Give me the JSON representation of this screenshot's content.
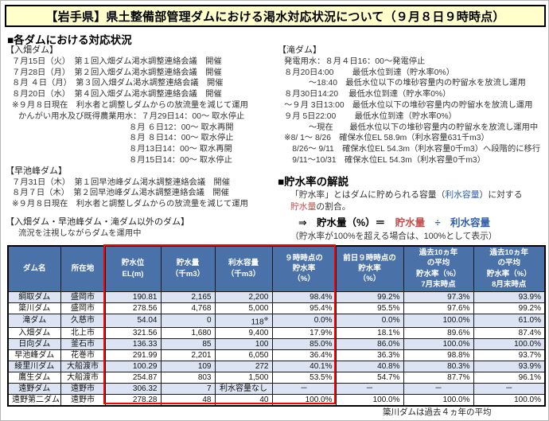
{
  "colors": {
    "title_bg": "#ffffcc",
    "header_blue": "#4a72a8",
    "row_alt": "#dce3f2",
    "box_red": "#ff0000",
    "text_red": "#c0504d",
    "text_blue": "#2e5fac"
  },
  "title": "【岩手県】県土整備部管理ダムにおける渇水対応状況について（９月８日９時時点）",
  "left": {
    "heading": "■各ダムにおける対応状況",
    "blocks": [
      {
        "header": "【入畑ダム】",
        "lines": [
          {
            "t": "７月15日（火）　第１回入畑ダム渇水調整連絡会議　開催",
            "ind": 0
          },
          {
            "t": "７月28日（月）　第２回入畑ダム渇水調整連絡会議　開催",
            "ind": 0
          },
          {
            "t": "８月 ４日（月）　第３回入畑ダム渇水調整連絡会議　開催",
            "ind": 0
          },
          {
            "t": "８月20日（水）　第４回入畑ダム渇水調整連絡会議　開催",
            "ind": 0
          },
          {
            "t": "※９月８日現在　利水者と調整しダムからの放流量を減じて運用",
            "ind": 0
          },
          {
            "t": "かんがい用水及び既得農業用水：７月29日14：00～ 取水停止",
            "ind": 1
          },
          {
            "t": "８月 ６日12：00～ 取水再開",
            "ind": 3
          },
          {
            "t": "８月 ８日14：00～ 取水停止",
            "ind": 3
          },
          {
            "t": "８月13日14：00～ 取水再開",
            "ind": 3
          },
          {
            "t": "８月15日14：00～ 取水停止",
            "ind": 3
          }
        ]
      },
      {
        "header": "【早池峰ダム】",
        "lines": [
          {
            "t": "７月31日（木）　第１回早池峰ダム渇水調整連絡会議　開催",
            "ind": 0
          },
          {
            "t": "８月７日（木）　第２回早池峰ダム渇水調整連絡会議　開催",
            "ind": 0
          },
          {
            "t": "※９月８日現在　利水者と調整しダムからの放流量を減じて運用",
            "ind": 0
          }
        ]
      },
      {
        "header": "【入畑ダム・早池峰ダム・滝ダム以外のダム】",
        "lines": [
          {
            "t": "流況を注視しながらダムを運用中",
            "ind": 1
          }
        ]
      }
    ]
  },
  "right": {
    "block": {
      "header": "【滝ダム】",
      "lines": [
        {
          "t": "発電用水：８月４日16：00～発電停止",
          "ind": 0
        },
        {
          "t": "８月20日4:00　 　最低水位到達（貯水率0%）",
          "ind": 0
        },
        {
          "t": "　　　～18:40　最低水位以下の堆砂容量内の貯留水を放流し運用",
          "ind": 0
        },
        {
          "t": "８月30日14:20　 最低水位到達（貯水率0%）",
          "ind": 0
        },
        {
          "t": "～９月 3日13:00　最低水位以下の堆砂容量内の貯留水を放流し運用",
          "ind": 0
        },
        {
          "t": "９月 5日22:00　 　最低水位到達（貯水率0%）",
          "ind": 0
        },
        {
          "t": "　　　～現在　　最低水位以下の堆砂容量内の貯留水を放流し運用中",
          "ind": 0
        },
        {
          "t": "※8/ 1～ 8/26　確保水位EL 58.9m（利水容量631千m3）",
          "ind": 0
        },
        {
          "t": "　8/26～ 9/11　確保水位EL 54.3m（利水容量0千m3）へ段階的に移行",
          "ind": 0
        },
        {
          "t": "　9/11～10/31　確保水位EL 54.3m（利水容量0千m3）",
          "ind": 0
        }
      ]
    },
    "explanation": {
      "heading": "■貯水率の解説",
      "lines": [
        {
          "ind": 1,
          "big": false,
          "segs": [
            {
              "t": "「貯水率」とはダムに貯められる容量（",
              "c": "k"
            },
            {
              "t": "利水容量",
              "c": "b"
            },
            {
              "t": "）に対する",
              "c": "k"
            }
          ]
        },
        {
          "ind": 1,
          "big": false,
          "segs": [
            {
              "t": "貯水量",
              "c": "r"
            },
            {
              "t": "の割合。",
              "c": "k"
            }
          ]
        },
        {
          "ind": 2,
          "big": true,
          "segs": [
            {
              "t": "⇒　貯水量（%）＝　",
              "c": "k"
            },
            {
              "t": "貯水量",
              "c": "r"
            },
            {
              "t": "　",
              "c": "k"
            },
            {
              "t": "÷",
              "c": "b"
            },
            {
              "t": "　",
              "c": "k"
            },
            {
              "t": "利水容量",
              "c": "b"
            }
          ]
        },
        {
          "ind": 1,
          "big": false,
          "segs": [
            {
              "t": "（貯水率が100%を超える場合は、100%として表示）",
              "c": "k"
            }
          ]
        }
      ]
    }
  },
  "table": {
    "headers": [
      "ダム名",
      "所在地",
      "貯水位\nEL(m)",
      "貯水量\n（千m3）",
      "利水容量\n（千m3）",
      "９時時点の\n貯水率\n（%）",
      "前日９時時点の\n貯水率\n（%）",
      "過去10ヵ年\nの平均\n貯水率（%）\n7月末時点",
      "過去10ヵ年\nの平均\n貯水率（%）\n8月末時点"
    ],
    "rows": [
      [
        "綱取ダム",
        "盛岡市",
        "190.81",
        "2,165",
        "2,200",
        "98.4%",
        "99.2%",
        "97.3%",
        "93.9%"
      ],
      [
        "簗川ダム",
        "盛岡市",
        "278.56",
        "4,768",
        "5,000",
        "95.4%",
        "95.5%",
        "97.6%",
        "99.2%"
      ],
      [
        "滝ダム",
        "久慈市",
        "54.04",
        "0",
        "118※",
        "0.0%",
        "0.0%",
        "100.0%",
        "61.0%"
      ],
      [
        "入畑ダム",
        "北上市",
        "321.56",
        "1,680",
        "9,400",
        "17.9%",
        "18.1%",
        "89.6%",
        "87.4%"
      ],
      [
        "日向ダム",
        "釜石市",
        "136.33",
        "85",
        "100",
        "85.0%",
        "86.0%",
        "100.0%",
        "100.0%"
      ],
      [
        "早池峰ダム",
        "花巻市",
        "291.99",
        "2,201",
        "6,050",
        "36.4%",
        "36.3%",
        "98.8%",
        "93.7%"
      ],
      [
        "綾里川ダム",
        "大船渡市",
        "100.29",
        "109",
        "272",
        "40.1%",
        "40.8%",
        "80.3%",
        "93.9%"
      ],
      [
        "鷹生ダム",
        "大船渡市",
        "254.87",
        "803",
        "1,500",
        "53.5%",
        "54.7%",
        "87.7%",
        "96.1%"
      ],
      [
        "遠野ダム",
        "遠野市",
        "306.32",
        "7",
        "利水容量なし",
        "－",
        "－",
        "－",
        "－"
      ],
      [
        "遠野第二ダム",
        "遠野市",
        "278.28",
        "48",
        "40",
        "100.0%",
        "100.0%",
        "100.0%",
        "100.0%"
      ]
    ],
    "footnote": "簗川ダムは過去４ヵ年の平均"
  }
}
